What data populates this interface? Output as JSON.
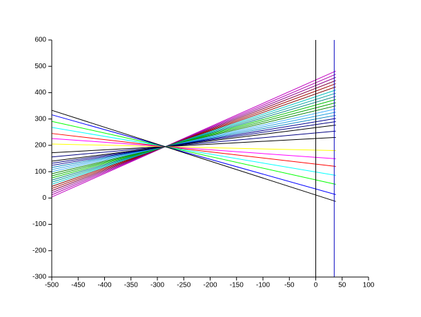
{
  "chart_data": {
    "type": "line",
    "xlim": [
      -500,
      100
    ],
    "ylim": [
      -300,
      600
    ],
    "xticks": [
      -500,
      -450,
      -400,
      -350,
      -300,
      -250,
      -200,
      -150,
      -100,
      -50,
      0,
      50,
      100
    ],
    "yticks": [
      -300,
      -200,
      -100,
      0,
      100,
      200,
      300,
      400,
      500,
      600
    ],
    "series": [
      {
        "color": "#c000c0",
        "x": [
          -500,
          38
        ],
        "values": [
          4,
          482
        ]
      },
      {
        "color": "#b000b0",
        "x": [
          -500,
          38
        ],
        "values": [
          12,
          470
        ]
      },
      {
        "color": "#900090",
        "x": [
          -500,
          38
        ],
        "values": [
          20,
          458
        ]
      },
      {
        "color": "#800040",
        "x": [
          -500,
          38
        ],
        "values": [
          28,
          446
        ]
      },
      {
        "color": "#a00000",
        "x": [
          -500,
          38
        ],
        "values": [
          36,
          434
        ]
      },
      {
        "color": "#800000",
        "x": [
          -500,
          38
        ],
        "values": [
          44,
          422
        ]
      },
      {
        "color": "#00c0c0",
        "x": [
          -500,
          38
        ],
        "values": [
          52,
          410
        ]
      },
      {
        "color": "#00a0a0",
        "x": [
          -500,
          38
        ],
        "values": [
          60,
          398
        ]
      },
      {
        "color": "#008080",
        "x": [
          -500,
          38
        ],
        "values": [
          68,
          386
        ]
      },
      {
        "color": "#00c000",
        "x": [
          -500,
          38
        ],
        "values": [
          76,
          374
        ]
      },
      {
        "color": "#00a000",
        "x": [
          -500,
          38
        ],
        "values": [
          84,
          362
        ]
      },
      {
        "color": "#008000",
        "x": [
          -500,
          38
        ],
        "values": [
          92,
          350
        ]
      },
      {
        "color": "#40b0ff",
        "x": [
          -500,
          38
        ],
        "values": [
          100,
          338
        ]
      },
      {
        "color": "#20a0e0",
        "x": [
          -500,
          38
        ],
        "values": [
          108,
          326
        ]
      },
      {
        "color": "#0080c0",
        "x": [
          -500,
          38
        ],
        "values": [
          116,
          314
        ]
      },
      {
        "color": "#000090",
        "x": [
          -500,
          38
        ],
        "values": [
          124,
          302
        ]
      },
      {
        "color": "#000080",
        "x": [
          -500,
          38
        ],
        "values": [
          132,
          290
        ]
      },
      {
        "color": "#000000",
        "x": [
          -500,
          38
        ],
        "values": [
          140,
          277
        ]
      },
      {
        "color": "#000080",
        "x": [
          -500,
          38
        ],
        "values": [
          156,
          254
        ]
      },
      {
        "color": "#000000",
        "x": [
          -500,
          38
        ],
        "values": [
          172,
          230
        ]
      },
      {
        "color": "#ffff00",
        "x": [
          -500,
          38
        ],
        "values": [
          205,
          180
        ]
      },
      {
        "color": "#ff00ff",
        "x": [
          -500,
          38
        ],
        "values": [
          226,
          149
        ]
      },
      {
        "color": "#ff0000",
        "x": [
          -500,
          38
        ],
        "values": [
          245,
          120
        ]
      },
      {
        "color": "#00ffff",
        "x": [
          -500,
          38
        ],
        "values": [
          268,
          86
        ]
      },
      {
        "color": "#00ff00",
        "x": [
          -500,
          38
        ],
        "values": [
          291,
          52
        ]
      },
      {
        "color": "#0000ff",
        "x": [
          -500,
          38
        ],
        "values": [
          316,
          13
        ]
      },
      {
        "color": "#000000",
        "x": [
          -500,
          38
        ],
        "values": [
          333,
          -13
        ]
      },
      {
        "color": "#000000",
        "x": [
          0,
          0
        ],
        "values": [
          -300,
          600
        ]
      },
      {
        "color": "#0000c0",
        "x": [
          35,
          35
        ],
        "values": [
          -300,
          600
        ]
      }
    ]
  }
}
